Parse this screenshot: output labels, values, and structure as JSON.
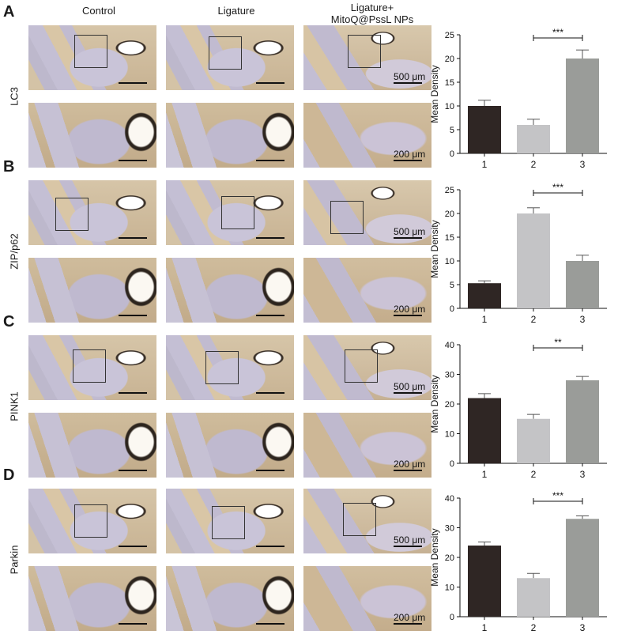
{
  "columns": [
    "Control",
    "Ligature",
    "Ligature+\nMitoQ@PssL NPs"
  ],
  "scale_bar_top": "500 μm",
  "scale_bar_bottom": "200 μm",
  "panels": [
    {
      "letter": "A",
      "marker": "LC3"
    },
    {
      "letter": "B",
      "marker": "ZIP/p62"
    },
    {
      "letter": "C",
      "marker": "PINK1"
    },
    {
      "letter": "D",
      "marker": "Parkin"
    }
  ],
  "colors": {
    "bar1": "#2f2624",
    "bar2": "#c4c4c6",
    "bar3": "#9a9c99"
  },
  "chart_data": [
    {
      "type": "bar",
      "categories": [
        "1",
        "2",
        "3"
      ],
      "values": [
        10,
        6,
        20
      ],
      "errors": [
        1.2,
        1.2,
        1.8
      ],
      "ylabel": "Mean Density",
      "ylim": [
        0,
        25
      ],
      "yticks": [
        0,
        5,
        10,
        15,
        20,
        25
      ],
      "significance": {
        "from": "2",
        "to": "3",
        "label": "***"
      }
    },
    {
      "type": "bar",
      "categories": [
        "1",
        "2",
        "3"
      ],
      "values": [
        5.3,
        20,
        10
      ],
      "errors": [
        0.5,
        1.2,
        1.2
      ],
      "ylabel": "Mean Density",
      "ylim": [
        0,
        25
      ],
      "yticks": [
        0,
        5,
        10,
        15,
        20,
        25
      ],
      "significance": {
        "from": "2",
        "to": "3",
        "label": "***"
      }
    },
    {
      "type": "bar",
      "categories": [
        "1",
        "2",
        "3"
      ],
      "values": [
        22,
        15,
        28
      ],
      "errors": [
        1.5,
        1.5,
        1.3
      ],
      "ylabel": "Mean Density",
      "ylim": [
        0,
        40
      ],
      "yticks": [
        0,
        10,
        20,
        30,
        40
      ],
      "significance": {
        "from": "2",
        "to": "3",
        "label": "**"
      }
    },
    {
      "type": "bar",
      "categories": [
        "1",
        "2",
        "3"
      ],
      "values": [
        24,
        13,
        33
      ],
      "errors": [
        1.2,
        1.6,
        1.0
      ],
      "ylabel": "Mean Density",
      "ylim": [
        0,
        40
      ],
      "yticks": [
        0,
        10,
        20,
        30,
        40
      ],
      "significance": {
        "from": "2",
        "to": "3",
        "label": "***"
      }
    }
  ]
}
